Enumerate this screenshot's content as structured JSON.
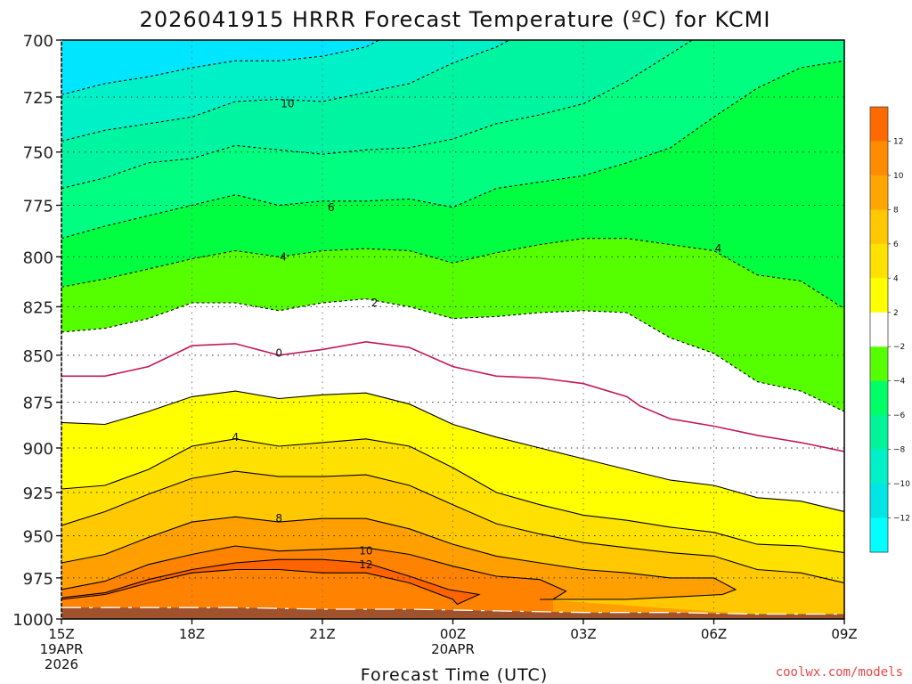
{
  "chart_data": {
    "type": "heatmap",
    "title": "2026041915 HRRR Forecast Temperature (ºC) for KCMI",
    "xlabel": "Forecast Time (UTC)",
    "ylabel": "",
    "credit": "coolwx.com/models",
    "y_ticks": [
      "700",
      "725",
      "750",
      "775",
      "800",
      "825",
      "850",
      "875",
      "900",
      "925",
      "950",
      "975",
      "1000"
    ],
    "y_values": [
      700,
      725,
      750,
      775,
      800,
      825,
      850,
      875,
      900,
      925,
      950,
      975,
      1000
    ],
    "ylim": [
      1000,
      700
    ],
    "y_scale": "log-pressure",
    "x_ticks": [
      {
        "t": 0,
        "lines": [
          "15Z",
          "19APR",
          "2026"
        ]
      },
      {
        "t": 3,
        "lines": [
          "18Z"
        ]
      },
      {
        "t": 6,
        "lines": [
          "21Z"
        ]
      },
      {
        "t": 9,
        "lines": [
          "00Z",
          "20APR"
        ]
      },
      {
        "t": 12,
        "lines": [
          "03Z"
        ]
      },
      {
        "t": 15,
        "lines": [
          "06Z"
        ]
      },
      {
        "t": 18,
        "lines": [
          "09Z"
        ]
      }
    ],
    "xlim": [
      0,
      18
    ],
    "grid": true,
    "colorbar": {
      "labels": [
        "12",
        "10",
        "8",
        "6",
        "4",
        "2",
        "−2",
        "−4",
        "−6",
        "−8",
        "−10",
        "−12"
      ],
      "colors": [
        "#ff6a00",
        "#ff8c00",
        "#ffa500",
        "#ffc800",
        "#ffe100",
        "#ffff00",
        "#ffffff",
        "#55ff00",
        "#00ff66",
        "#00f59b",
        "#00f0c8",
        "#00e6e6",
        "#00ffff"
      ],
      "top_color": "#ff6a00",
      "bottom_color": "#00e6ff"
    },
    "isotherms": [
      {
        "level": 12,
        "label": "12",
        "line": "solid",
        "color": "#000000",
        "points": [
          [
            0,
            988
          ],
          [
            1,
            985
          ],
          [
            2,
            978
          ],
          [
            3,
            972
          ],
          [
            4,
            970
          ],
          [
            5,
            970
          ],
          [
            6,
            972
          ],
          [
            7,
            972
          ],
          [
            8,
            978
          ],
          [
            9,
            988
          ],
          [
            9.1,
            991
          ],
          [
            9.6,
            985
          ],
          [
            8.9,
            982
          ],
          [
            8,
            974
          ],
          [
            7,
            966
          ],
          [
            6,
            964
          ],
          [
            5,
            964
          ],
          [
            4,
            966
          ],
          [
            3,
            970
          ],
          [
            2,
            976
          ],
          [
            1,
            984
          ],
          [
            0,
            987
          ]
        ]
      },
      {
        "level": 10,
        "label": "10",
        "line": "solid",
        "color": "#000000",
        "points": [
          [
            0,
            982
          ],
          [
            1,
            977
          ],
          [
            2,
            967
          ],
          [
            3,
            961
          ],
          [
            4,
            956
          ],
          [
            5,
            959
          ],
          [
            6,
            958
          ],
          [
            7,
            957
          ],
          [
            8,
            961
          ],
          [
            9,
            968
          ],
          [
            10,
            974
          ],
          [
            11,
            976
          ],
          [
            11.6,
            983
          ],
          [
            11.3,
            988
          ]
        ]
      },
      {
        "level": 8,
        "label": "8",
        "line": "solid",
        "color": "#000000",
        "points": [
          [
            0,
            966
          ],
          [
            1,
            961
          ],
          [
            2,
            951
          ],
          [
            3,
            942
          ],
          [
            4,
            939
          ],
          [
            5,
            942
          ],
          [
            6,
            940
          ],
          [
            7,
            940
          ],
          [
            8,
            946
          ],
          [
            9,
            955
          ],
          [
            10,
            962
          ],
          [
            11,
            966
          ],
          [
            12,
            970
          ],
          [
            13,
            972
          ],
          [
            14,
            975
          ],
          [
            15,
            975
          ],
          [
            15.5,
            982
          ],
          [
            15.2,
            985
          ],
          [
            13,
            988
          ],
          [
            11,
            988
          ]
        ]
      },
      {
        "level": 6,
        "label": "6",
        "line": "solid",
        "color": "#000000",
        "points": [
          [
            0,
            944
          ],
          [
            1,
            936
          ],
          [
            2,
            926
          ],
          [
            3,
            917
          ],
          [
            4,
            913
          ],
          [
            5,
            916
          ],
          [
            6,
            916
          ],
          [
            7,
            915
          ],
          [
            8,
            921
          ],
          [
            9,
            932
          ],
          [
            10,
            943
          ],
          [
            11,
            949
          ],
          [
            12,
            954
          ],
          [
            13,
            957
          ],
          [
            14,
            960
          ],
          [
            15,
            962
          ],
          [
            16,
            970
          ],
          [
            17,
            972
          ],
          [
            18,
            978
          ]
        ]
      },
      {
        "level": 4,
        "label": "4",
        "line": "solid",
        "color": "#000000",
        "points": [
          [
            0,
            923
          ],
          [
            1,
            921
          ],
          [
            2,
            912
          ],
          [
            3,
            899
          ],
          [
            4,
            895
          ],
          [
            5,
            899
          ],
          [
            6,
            897
          ],
          [
            7,
            895
          ],
          [
            8,
            899
          ],
          [
            9,
            911
          ],
          [
            10,
            925
          ],
          [
            11,
            932
          ],
          [
            12,
            938
          ],
          [
            13,
            941
          ],
          [
            14,
            945
          ],
          [
            15,
            948
          ],
          [
            16,
            955
          ],
          [
            17,
            956
          ],
          [
            18,
            960
          ]
        ]
      },
      {
        "level": 2,
        "label": "2",
        "line": "solid",
        "color": "#000000",
        "points": [
          [
            0,
            886
          ],
          [
            1,
            887
          ],
          [
            2,
            880
          ],
          [
            3,
            872
          ],
          [
            4,
            869
          ],
          [
            5,
            873
          ],
          [
            6,
            871
          ],
          [
            7,
            870
          ],
          [
            8,
            876
          ],
          [
            9,
            887
          ],
          [
            10,
            894
          ],
          [
            11,
            900
          ],
          [
            12,
            906
          ],
          [
            13,
            912
          ],
          [
            14,
            918
          ],
          [
            15,
            921
          ],
          [
            16,
            928
          ],
          [
            17,
            930
          ],
          [
            18,
            936
          ]
        ]
      },
      {
        "level": 0,
        "label": "0",
        "line": "solid",
        "color": "#c2185b",
        "points": [
          [
            0,
            861
          ],
          [
            1,
            861
          ],
          [
            2,
            856
          ],
          [
            3,
            845
          ],
          [
            4,
            844
          ],
          [
            5,
            850
          ],
          [
            6,
            847
          ],
          [
            7,
            843
          ],
          [
            8,
            846
          ],
          [
            9,
            856
          ],
          [
            10,
            861
          ],
          [
            11,
            862
          ],
          [
            12,
            865
          ],
          [
            13,
            872
          ],
          [
            13.3,
            877
          ],
          [
            14,
            884
          ],
          [
            15,
            888
          ],
          [
            16,
            893
          ],
          [
            17,
            897
          ],
          [
            18,
            902
          ]
        ]
      },
      {
        "level": -2,
        "label": "2",
        "line": "dashed",
        "color": "#000000",
        "points": [
          [
            0,
            838
          ],
          [
            1,
            836
          ],
          [
            2,
            831
          ],
          [
            3,
            823
          ],
          [
            4,
            823
          ],
          [
            5,
            827
          ],
          [
            6,
            823
          ],
          [
            7,
            821
          ],
          [
            8,
            825
          ],
          [
            9,
            831
          ],
          [
            10,
            830
          ],
          [
            11,
            828
          ],
          [
            12,
            827
          ],
          [
            13,
            828
          ],
          [
            14,
            841
          ],
          [
            15,
            849
          ],
          [
            16,
            864
          ],
          [
            17,
            869
          ],
          [
            18,
            880
          ]
        ]
      },
      {
        "level": -4,
        "label": "4",
        "line": "dashed",
        "color": "#000000",
        "points": [
          [
            0,
            815
          ],
          [
            1,
            811
          ],
          [
            2,
            806
          ],
          [
            3,
            801
          ],
          [
            4,
            797
          ],
          [
            5,
            800
          ],
          [
            6,
            797
          ],
          [
            7,
            796
          ],
          [
            8,
            797
          ],
          [
            9,
            803
          ],
          [
            10,
            798
          ],
          [
            11,
            794
          ],
          [
            12,
            791
          ],
          [
            13,
            791
          ],
          [
            14,
            794
          ],
          [
            15,
            797
          ],
          [
            16,
            809
          ],
          [
            17,
            812
          ],
          [
            18,
            826
          ]
        ]
      },
      {
        "level": -6,
        "label": "6",
        "line": "dashed",
        "color": "#000000",
        "points": [
          [
            0,
            791
          ],
          [
            1,
            785
          ],
          [
            2,
            780
          ],
          [
            3,
            775
          ],
          [
            4,
            770
          ],
          [
            5,
            775
          ],
          [
            6,
            773
          ],
          [
            7,
            773
          ],
          [
            8,
            772
          ],
          [
            9,
            776
          ],
          [
            10,
            767
          ],
          [
            11,
            764
          ],
          [
            12,
            761
          ],
          [
            13,
            755
          ],
          [
            14,
            748
          ],
          [
            15,
            734
          ],
          [
            16,
            721
          ],
          [
            17,
            712
          ],
          [
            18,
            709
          ]
        ]
      },
      {
        "level": -8,
        "label": "8",
        "line": "dashed",
        "color": "#000000",
        "points": [
          [
            0,
            767
          ],
          [
            1,
            762
          ],
          [
            2,
            755
          ],
          [
            3,
            753
          ],
          [
            4,
            747
          ],
          [
            5,
            749
          ],
          [
            6,
            751
          ],
          [
            7,
            749
          ],
          [
            8,
            748
          ],
          [
            9,
            744
          ],
          [
            10,
            737
          ],
          [
            11,
            733
          ],
          [
            12,
            728
          ],
          [
            13,
            718
          ],
          [
            14,
            706
          ],
          [
            14.5,
            700
          ]
        ]
      },
      {
        "level": -10,
        "label": "10",
        "line": "dashed",
        "color": "#000000",
        "points": [
          [
            0,
            745
          ],
          [
            1,
            740
          ],
          [
            2,
            737
          ],
          [
            3,
            734
          ],
          [
            4,
            727
          ],
          [
            5,
            726
          ],
          [
            6,
            727
          ],
          [
            7,
            723
          ],
          [
            8,
            719
          ],
          [
            9,
            710
          ],
          [
            10,
            703
          ],
          [
            10.3,
            700
          ]
        ]
      },
      {
        "level": -12,
        "label": "12",
        "line": "dashed",
        "color": "#000000",
        "points": [
          [
            0,
            724
          ],
          [
            1,
            719
          ],
          [
            2,
            716
          ],
          [
            3,
            712
          ],
          [
            4,
            709
          ],
          [
            5,
            709
          ],
          [
            6,
            707
          ],
          [
            7,
            703
          ],
          [
            7.3,
            700
          ]
        ]
      }
    ],
    "contour_labels": [
      {
        "text": "10",
        "x": 5.2,
        "y": 728
      },
      {
        "text": "6",
        "x": 6.2,
        "y": 776
      },
      {
        "text": "4",
        "x": 5.1,
        "y": 800
      },
      {
        "text": "2",
        "x": 7.2,
        "y": 823
      },
      {
        "text": "0",
        "x": 5.0,
        "y": 849
      },
      {
        "text": "4",
        "x": 4.0,
        "y": 894
      },
      {
        "text": "8",
        "x": 5.0,
        "y": 940
      },
      {
        "text": "10",
        "x": 7.0,
        "y": 959
      },
      {
        "text": "12",
        "x": 7.0,
        "y": 967
      },
      {
        "text": "4",
        "x": 15.1,
        "y": 796
      }
    ],
    "surface": {
      "color": "#a0522d",
      "points": [
        [
          0,
          993
        ],
        [
          2,
          993
        ],
        [
          4,
          993
        ],
        [
          6,
          994
        ],
        [
          8,
          994
        ],
        [
          10,
          995
        ],
        [
          12,
          996
        ],
        [
          14,
          996
        ],
        [
          16,
          997
        ],
        [
          18,
          997
        ]
      ]
    }
  }
}
